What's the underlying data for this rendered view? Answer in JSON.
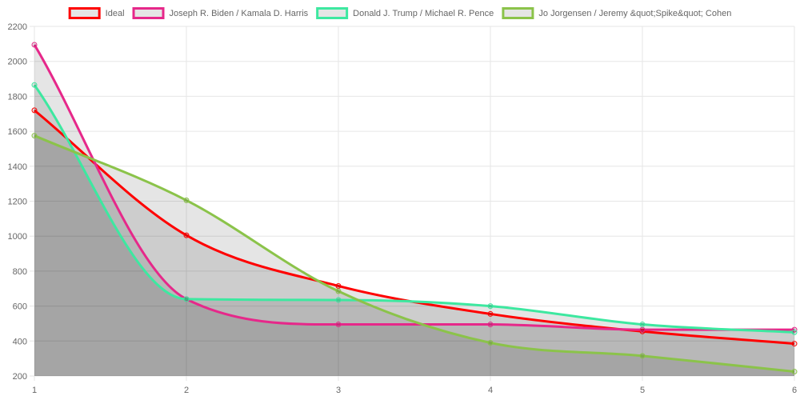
{
  "chart_data": {
    "type": "line",
    "x": [
      1,
      2,
      3,
      4,
      5,
      6
    ],
    "ylim": [
      200,
      2200
    ],
    "yticks": [
      200,
      400,
      600,
      800,
      1000,
      1200,
      1400,
      1600,
      1800,
      2000,
      2200
    ],
    "xticks": [
      "1",
      "2",
      "3",
      "4",
      "5",
      "6"
    ],
    "grid": true,
    "legend_position": "top",
    "series": [
      {
        "name": "Ideal",
        "color": "#ff0000",
        "values": [
          1720,
          1005,
          715,
          555,
          455,
          385
        ]
      },
      {
        "name": "Joseph R. Biden / Kamala D. Harris",
        "color": "#e6288a",
        "values": [
          2095,
          640,
          495,
          495,
          465,
          465
        ]
      },
      {
        "name": "Donald J. Trump / Michael R. Pence",
        "color": "#3de8a0",
        "values": [
          1865,
          640,
          635,
          600,
          495,
          450
        ]
      },
      {
        "name": "Jo Jorgensen / Jeremy &quot;Spike&quot; Cohen",
        "color": "#8bc34a",
        "values": [
          1575,
          1205,
          685,
          390,
          315,
          225
        ]
      }
    ]
  }
}
